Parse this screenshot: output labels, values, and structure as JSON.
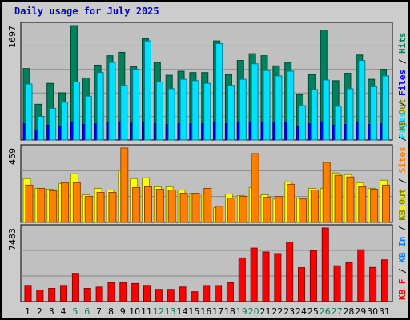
{
  "title": "Daily usage for July 2025",
  "colors": {
    "hits": "#00805c",
    "files": "#0000ff",
    "pages": "#00e0ff",
    "visits": "#ffff00",
    "sites": "#ff8000",
    "kbout": "#808000",
    "kbin": "#0080ff",
    "kbf": "#ff0000",
    "weekend": "#00805c",
    "weekday": "#000000"
  },
  "chart_data": [
    {
      "type": "bar",
      "categories": [
        "1",
        "2",
        "3",
        "4",
        "5",
        "6",
        "7",
        "8",
        "9",
        "10",
        "11",
        "12",
        "13",
        "14",
        "15",
        "16",
        "17",
        "18",
        "19",
        "20",
        "21",
        "22",
        "23",
        "24",
        "25",
        "26",
        "27",
        "28",
        "29",
        "30",
        "31"
      ],
      "weekend_days": [
        5,
        6,
        12,
        13,
        19,
        20,
        26,
        27
      ],
      "max_label": "1697",
      "ylim": [
        0,
        1697
      ],
      "series": [
        {
          "name": "Hits",
          "values": [
            1060,
            530,
            840,
            700,
            1697,
            920,
            1110,
            1250,
            1300,
            1090,
            1500,
            1150,
            960,
            1020,
            1000,
            1000,
            1470,
            970,
            1180,
            1280,
            1250,
            1100,
            1150,
            670,
            970,
            1630,
            880,
            990,
            1260,
            900,
            1050
          ]
        },
        {
          "name": "Files",
          "values": [
            240,
            150,
            220,
            200,
            260,
            230,
            240,
            260,
            270,
            250,
            270,
            240,
            230,
            240,
            240,
            240,
            270,
            240,
            260,
            260,
            260,
            250,
            260,
            200,
            240,
            270,
            220,
            230,
            260,
            230,
            240
          ]
        },
        {
          "name": "Pages",
          "values": [
            830,
            350,
            470,
            560,
            860,
            650,
            1000,
            1150,
            810,
            1050,
            1470,
            860,
            760,
            900,
            880,
            840,
            1430,
            810,
            900,
            1130,
            1030,
            950,
            1020,
            510,
            750,
            890,
            500,
            760,
            1180,
            790,
            950
          ]
        }
      ],
      "legend": [
        "Pages",
        "Files",
        "Hits"
      ]
    },
    {
      "type": "bar",
      "categories": [
        "1",
        "2",
        "3",
        "4",
        "5",
        "6",
        "7",
        "8",
        "9",
        "10",
        "11",
        "12",
        "13",
        "14",
        "15",
        "16",
        "17",
        "18",
        "19",
        "20",
        "21",
        "22",
        "23",
        "24",
        "25",
        "26",
        "27",
        "28",
        "29",
        "30",
        "31"
      ],
      "max_label": "459",
      "ylim": [
        0,
        459
      ],
      "series": [
        {
          "name": "Visits",
          "values": [
            270,
            210,
            205,
            240,
            300,
            170,
            210,
            200,
            320,
            270,
            275,
            220,
            220,
            200,
            180,
            175,
            90,
            175,
            165,
            215,
            170,
            145,
            250,
            150,
            210,
            210,
            305,
            295,
            245,
            210,
            260
          ]
        },
        {
          "name": "Sites",
          "values": [
            230,
            210,
            195,
            245,
            245,
            160,
            185,
            185,
            459,
            215,
            220,
            205,
            200,
            180,
            180,
            210,
            100,
            150,
            160,
            425,
            155,
            160,
            235,
            145,
            200,
            370,
            290,
            280,
            220,
            205,
            230
          ]
        }
      ],
      "legend": [
        "Visits",
        "Sites",
        "KB Out"
      ]
    },
    {
      "type": "bar",
      "categories": [
        "1",
        "2",
        "3",
        "4",
        "5",
        "6",
        "7",
        "8",
        "9",
        "10",
        "11",
        "12",
        "13",
        "14",
        "15",
        "16",
        "17",
        "18",
        "19",
        "20",
        "21",
        "22",
        "23",
        "24",
        "25",
        "26",
        "27",
        "28",
        "29",
        "30",
        "31"
      ],
      "max_label": "7483",
      "ylim": [
        0,
        7483
      ],
      "series": [
        {
          "name": "KB F",
          "values": [
            1640,
            1180,
            1340,
            1640,
            2870,
            1340,
            1470,
            1930,
            1930,
            1840,
            1640,
            1240,
            1240,
            1480,
            1000,
            1630,
            1630,
            1930,
            4440,
            5440,
            5040,
            4880,
            6060,
            3450,
            5180,
            7483,
            3640,
            3950,
            5270,
            3470,
            4250
          ]
        }
      ],
      "legend": [
        "KB F",
        "KB In",
        "KB Out"
      ]
    }
  ]
}
